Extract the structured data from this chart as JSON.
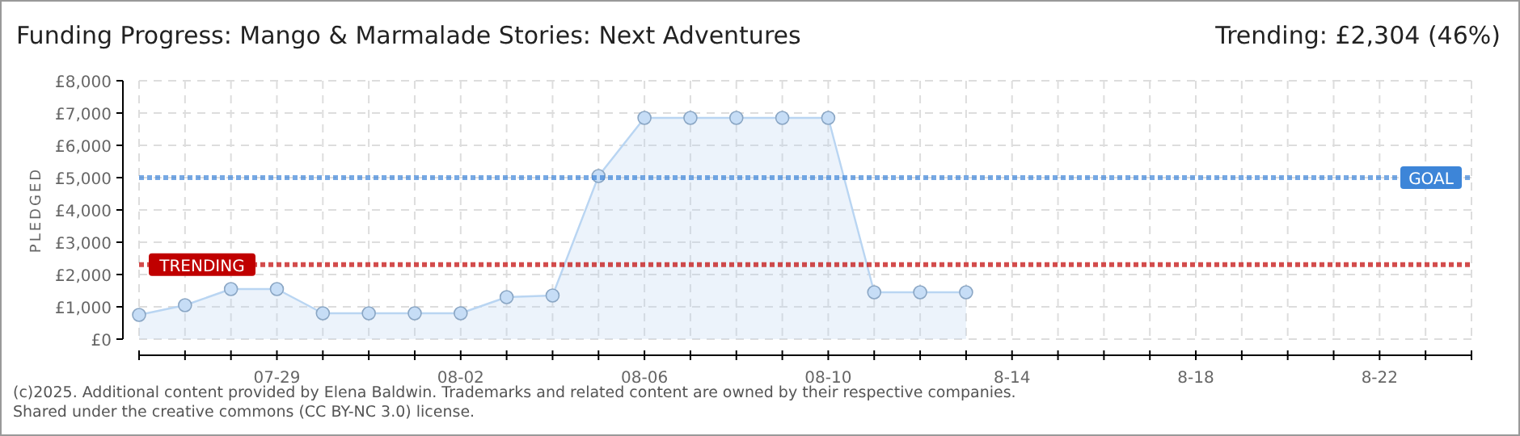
{
  "chart_data": {
    "type": "area",
    "title": "Funding Progress: Mango & Marmalade Stories: Next Adventures",
    "subtitle": "Trending:  £2,304 (46%)",
    "ylabel": "PLEDGED",
    "x": [
      "--07-26",
      "--07-27",
      "--07-28",
      "--07-29",
      "--07-30",
      "--07-31",
      "--08-01",
      "--08-02",
      "--08-03",
      "--08-04",
      "--08-05",
      "--08-06",
      "--08-07",
      "--08-08",
      "--08-09",
      "--08-10",
      "--08-11",
      "--08-12",
      "--08-13"
    ],
    "series": [
      {
        "color": "#b9d5f2",
        "values": [
          750,
          1050,
          1550,
          1550,
          800,
          800,
          800,
          800,
          1300,
          1350,
          5050,
          6850,
          6850,
          6850,
          6850,
          6850,
          1450,
          1450,
          1450
        ]
      }
    ],
    "xlim": [
      "--07-26",
      "--08-24"
    ],
    "xticks": [
      {
        "value": "--07-26",
        "label": null
      },
      {
        "value": "--07-27",
        "label": null
      },
      {
        "value": "--07-28",
        "label": null
      },
      {
        "value": "--07-29",
        "label": "07-29"
      },
      {
        "value": "--07-30",
        "label": null
      },
      {
        "value": "--07-31",
        "label": null
      },
      {
        "value": "--08-01",
        "label": null
      },
      {
        "value": "--08-02",
        "label": "08-02"
      },
      {
        "value": "--08-03",
        "label": null
      },
      {
        "value": "--08-04",
        "label": null
      },
      {
        "value": "--08-05",
        "label": null
      },
      {
        "value": "--08-06",
        "label": "08-06"
      },
      {
        "value": "--08-07",
        "label": null
      },
      {
        "value": "--08-08",
        "label": null
      },
      {
        "value": "--08-09",
        "label": null
      },
      {
        "value": "--08-10",
        "label": "08-10"
      },
      {
        "value": "--08-11",
        "label": null
      },
      {
        "value": "--08-12",
        "label": null
      },
      {
        "value": "--08-13",
        "label": null
      },
      {
        "value": "--08-14",
        "label": "8-14"
      },
      {
        "value": "--08-15",
        "label": null
      },
      {
        "value": "--08-16",
        "label": null
      },
      {
        "value": "--08-17",
        "label": null
      },
      {
        "value": "--08-18",
        "label": "8-18"
      },
      {
        "value": "--08-19",
        "label": null
      },
      {
        "value": "--08-20",
        "label": null
      },
      {
        "value": "--08-21",
        "label": null
      },
      {
        "value": "--08-22",
        "label": "8-22"
      },
      {
        "value": "--08-23",
        "label": null
      },
      {
        "value": "--08-24",
        "label": null
      }
    ],
    "ylim": [
      0,
      8000
    ],
    "yticks": [
      {
        "value": 0,
        "label": "£0"
      },
      {
        "value": 1000,
        "label": "£1,000"
      },
      {
        "value": 2000,
        "label": "£2,000"
      },
      {
        "value": 3000,
        "label": "£3,000"
      },
      {
        "value": 4000,
        "label": "£4,000"
      },
      {
        "value": 5000,
        "label": "£5,000"
      },
      {
        "value": 6000,
        "label": "£6,000"
      },
      {
        "value": 7000,
        "label": "£7,000"
      },
      {
        "value": 8000,
        "label": "£8,000"
      }
    ],
    "grid": true,
    "marker": "circle",
    "ref_lines": [
      {
        "axis": "y",
        "value": 5000,
        "label": "GOAL",
        "color": "#3d85d8",
        "line_style": "dotted"
      },
      {
        "axis": "y",
        "value": 2304,
        "label": "TRENDING",
        "color": "#c00000",
        "line_style": "dotted"
      }
    ],
    "annotations": [
      "(c)2025. Additional content provided by Elena Baldwin. Trademarks and related content are owned by their respective companies.",
      "Shared under the creative commons (CC BY-NC 3.0) license."
    ]
  }
}
